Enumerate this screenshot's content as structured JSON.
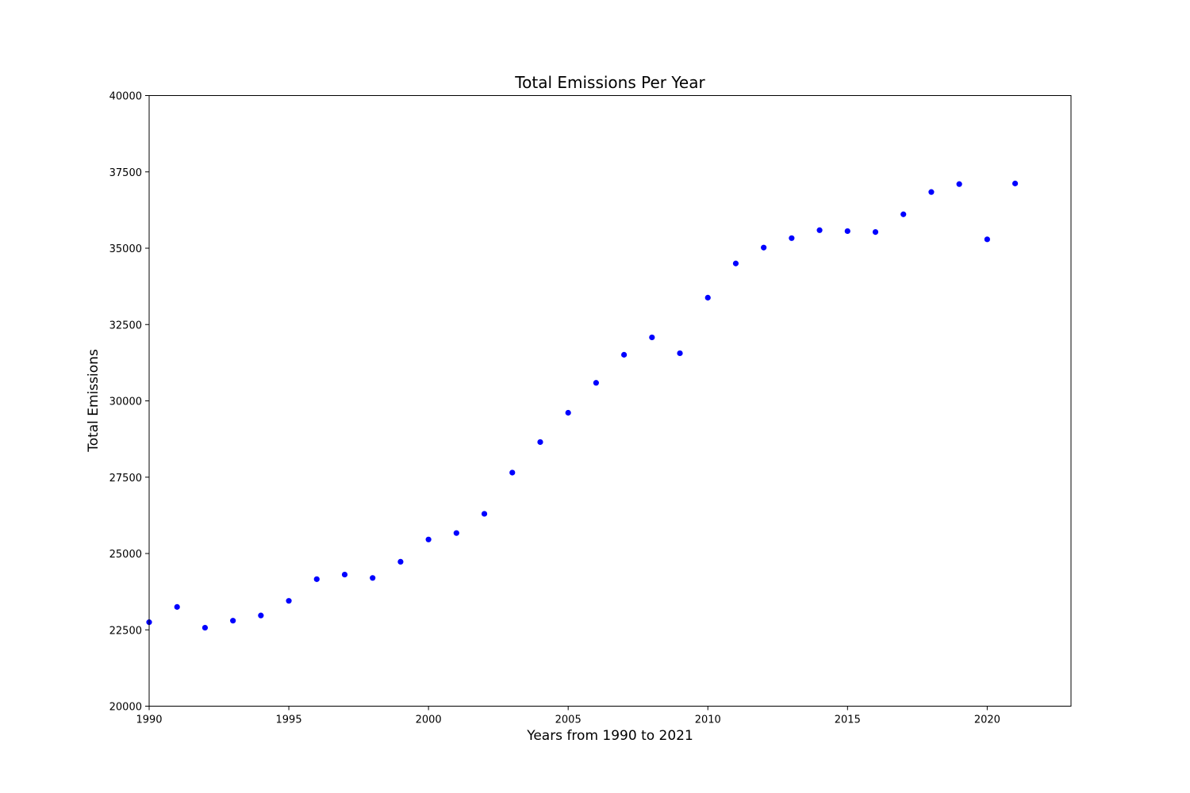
{
  "chart_data": {
    "type": "scatter",
    "title": "Total Emissions Per Year",
    "xlabel": "Years from 1990 to 2021",
    "ylabel": "Total Emissions",
    "xlim": [
      1990,
      2023
    ],
    "ylim": [
      20000,
      40000
    ],
    "xticks": [
      1990,
      1995,
      2000,
      2005,
      2010,
      2015,
      2020
    ],
    "yticks": [
      20000,
      22500,
      25000,
      27500,
      30000,
      32500,
      35000,
      37500,
      40000
    ],
    "grid": false,
    "legend": "none",
    "marker_color": "#0000ff",
    "marker_edge_color": "#ffffff",
    "x": [
      1990,
      1991,
      1992,
      1993,
      1994,
      1995,
      1996,
      1997,
      1998,
      1999,
      2000,
      2001,
      2002,
      2003,
      2004,
      2005,
      2006,
      2007,
      2008,
      2009,
      2010,
      2011,
      2012,
      2013,
      2014,
      2015,
      2016,
      2017,
      2018,
      2019,
      2020,
      2021
    ],
    "y": [
      22750,
      23250,
      22570,
      22800,
      22970,
      23450,
      24160,
      24310,
      24200,
      24730,
      25460,
      25670,
      26300,
      27650,
      28650,
      29610,
      30590,
      31510,
      32080,
      31560,
      33380,
      34500,
      35020,
      35330,
      35590,
      35560,
      35530,
      36110,
      36840,
      37100,
      35290,
      37120
    ]
  }
}
